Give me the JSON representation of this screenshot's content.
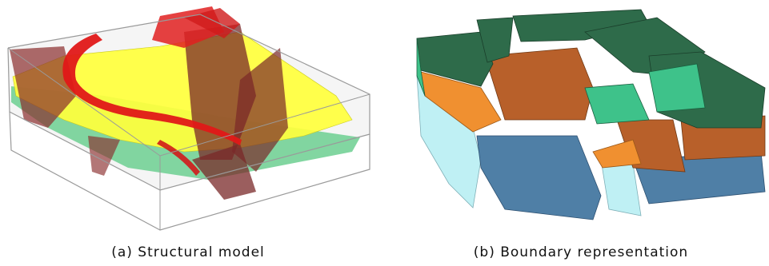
{
  "figures": [
    {
      "caption": "(a) Structural model"
    },
    {
      "caption": "(b) Boundary representation"
    }
  ],
  "colors": {
    "yellow_horizon": "#ffff3c",
    "green_horizon": "#6ccf90",
    "red_fault": "#e01818",
    "dark_fault": "#7a2828",
    "bbox_edge": "#9a9a9a",
    "dark_green_block": "#2e6b4a",
    "light_green_block": "#3ec28a",
    "brown_layer": "#b8602a",
    "orange_layer": "#f09030",
    "light_blue_block": "#bff0f4",
    "steel_blue_block": "#4f7fa6"
  }
}
